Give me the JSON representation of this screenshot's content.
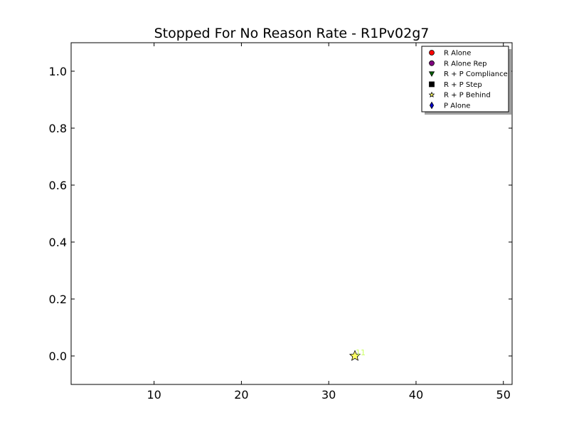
{
  "chart_data": {
    "type": "scatter",
    "title": "Stopped For No Reason Rate - R1Pv02g7",
    "xlabel": "",
    "ylabel": "",
    "xlim": [
      0.5,
      51
    ],
    "ylim": [
      -0.1,
      1.1
    ],
    "xticks": [
      10,
      20,
      30,
      40,
      50
    ],
    "yticks": [
      0.0,
      0.2,
      0.4,
      0.6,
      0.8,
      1.0
    ],
    "xtick_labels": [
      "10",
      "20",
      "30",
      "40",
      "50"
    ],
    "ytick_labels": [
      "0.0",
      "0.2",
      "0.4",
      "0.6",
      "0.8",
      "1.0"
    ],
    "grid": false,
    "legend_position": "top-right",
    "legend": [
      {
        "label": "R Alone",
        "marker": "circle",
        "color": "#ff0000"
      },
      {
        "label": "R Alone Rep",
        "marker": "circle",
        "color": "#800080"
      },
      {
        "label": "R + P Compliance",
        "marker": "triangle-down",
        "color": "#006400"
      },
      {
        "label": "R + P Step",
        "marker": "square",
        "color": "#000000"
      },
      {
        "label": "R + P Behind",
        "marker": "star",
        "color": "#ffff66"
      },
      {
        "label": "P Alone",
        "marker": "diamond",
        "color": "#0000cc"
      }
    ],
    "points": [
      {
        "series": "R + P Behind",
        "x": 33,
        "y": 0.0,
        "label": "11",
        "marker": "star",
        "color": "#ffff66",
        "label_color": "#ccff66"
      }
    ]
  }
}
